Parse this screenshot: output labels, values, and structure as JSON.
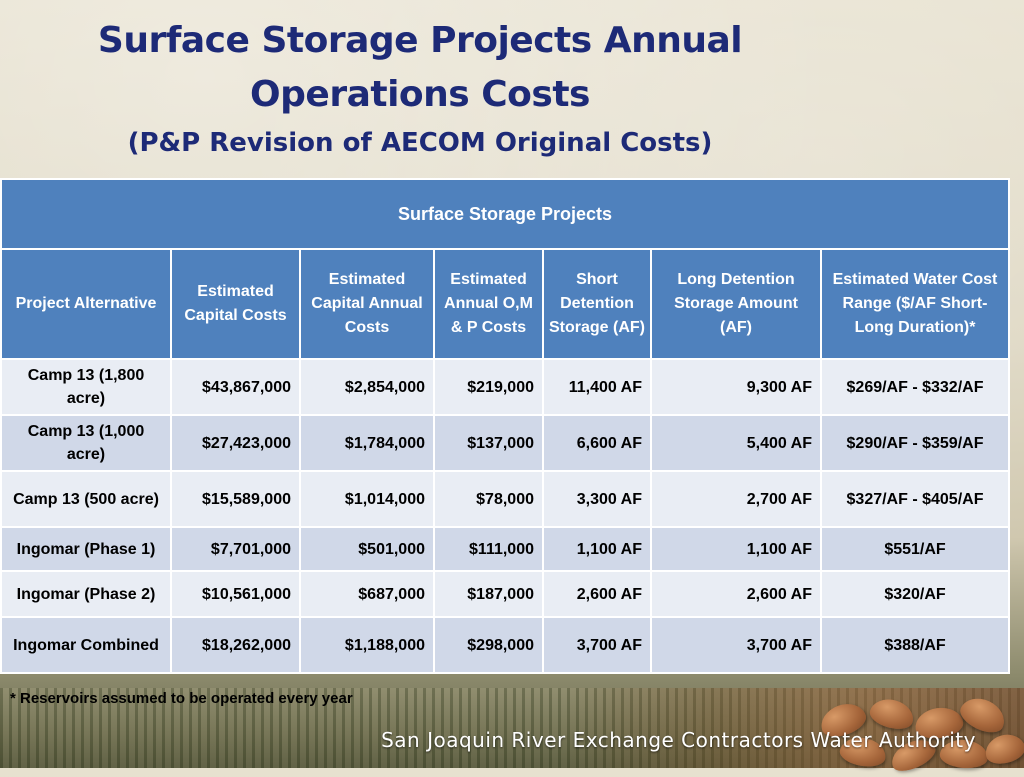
{
  "title": {
    "line1": "Surface Storage Projects Annual",
    "line2": "Operations Costs",
    "subtitle": "(P&P Revision of AECOM Original Costs)"
  },
  "table": {
    "banner": "Surface Storage Projects",
    "headers": [
      "Project Alternative",
      "Estimated Capital Costs",
      "Estimated Capital Annual Costs",
      "Estimated Annual O,M & P Costs",
      "Short Detention Storage (AF)",
      "Long Detention Storage Amount (AF)",
      "Estimated Water Cost Range ($/AF Short-Long Duration)*"
    ],
    "rows": [
      {
        "project": "Camp 13 (1,800 acre)",
        "capital": "$43,867,000",
        "capital_annual": "$2,854,000",
        "omp": "$219,000",
        "short": "11,400 AF",
        "long": "9,300 AF",
        "range": "$269/AF - $332/AF"
      },
      {
        "project": "Camp 13 (1,000 acre)",
        "capital": "$27,423,000",
        "capital_annual": "$1,784,000",
        "omp": "$137,000",
        "short": "6,600 AF",
        "long": "5,400 AF",
        "range": "$290/AF - $359/AF"
      },
      {
        "project": "Camp 13 (500 acre)",
        "capital": "$15,589,000",
        "capital_annual": "$1,014,000",
        "omp": "$78,000",
        "short": "3,300 AF",
        "long": "2,700 AF",
        "range": "$327/AF - $405/AF"
      },
      {
        "project": "Ingomar (Phase 1)",
        "capital": "$7,701,000",
        "capital_annual": "$501,000",
        "omp": "$111,000",
        "short": "1,100 AF",
        "long": "1,100 AF",
        "range": "$551/AF"
      },
      {
        "project": "Ingomar (Phase 2)",
        "capital": "$10,561,000",
        "capital_annual": "$687,000",
        "omp": "$187,000",
        "short": "2,600 AF",
        "long": "2,600 AF",
        "range": "$320/AF"
      },
      {
        "project": "Ingomar Combined",
        "capital": "$18,262,000",
        "capital_annual": "$1,188,000",
        "omp": "$298,000",
        "short": "3,700 AF",
        "long": "3,700 AF",
        "range": "$388/AF"
      }
    ]
  },
  "footnote": "* Reservoirs assumed to be operated every year",
  "organization": "San Joaquin River Exchange Contractors Water Authority",
  "colors": {
    "title": "#1d2a77",
    "header_bg": "#4f81bd",
    "row_light": "#e9edf4",
    "row_dark": "#d0d8e8"
  }
}
